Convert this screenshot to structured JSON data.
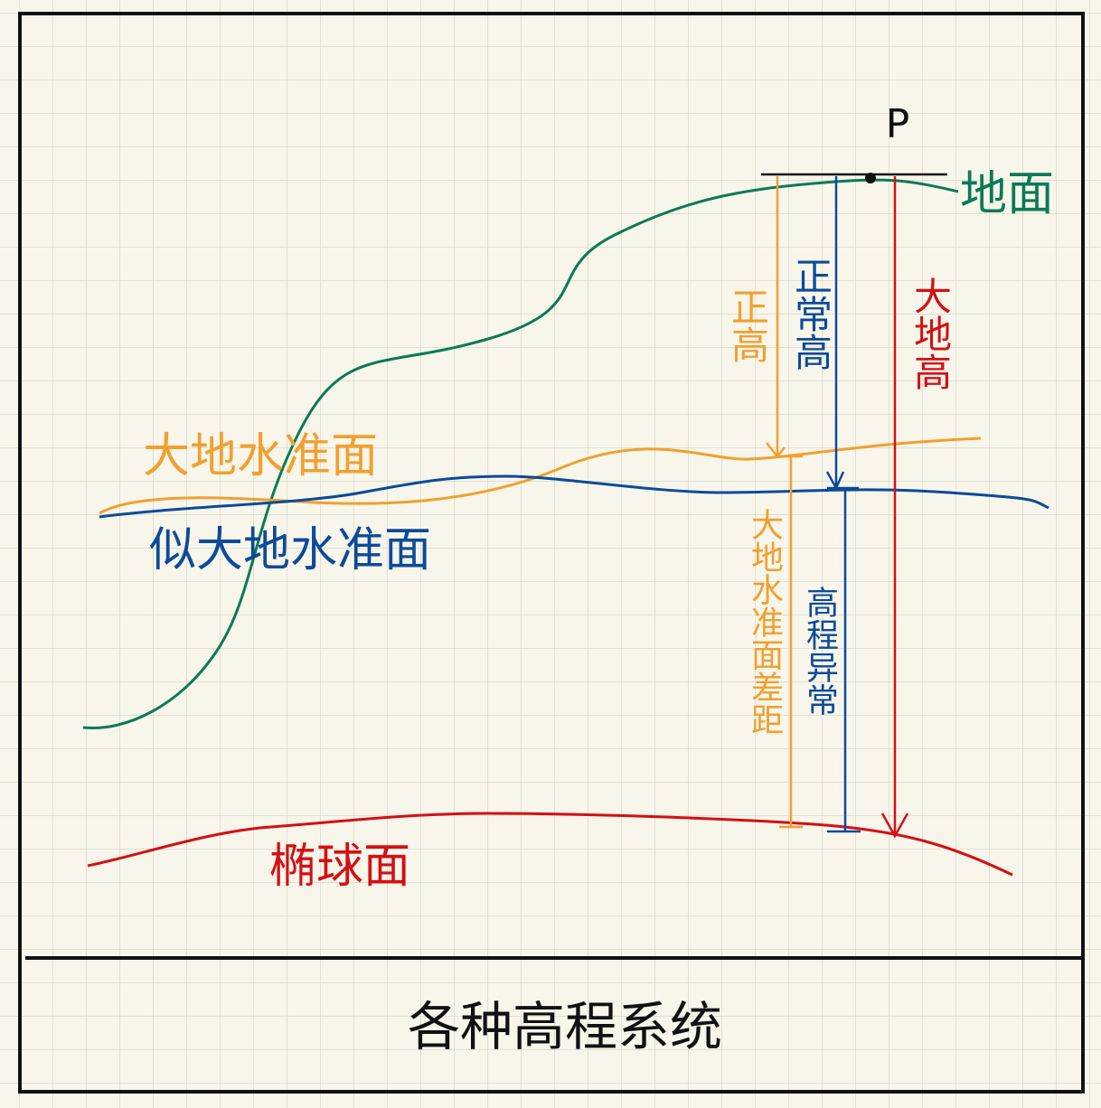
{
  "point": "P",
  "surfaces": {
    "ground": "地面",
    "geoid": "大地水准面",
    "quasi_geoid": "似大地水准面",
    "ellipsoid": "椭球面"
  },
  "heights": {
    "orthometric": "正高",
    "normal": "正常高",
    "geodetic": "大地高",
    "geoid_undulation": "大地水准面差距",
    "height_anomaly": "高程异常"
  },
  "caption": "各种高程系统"
}
